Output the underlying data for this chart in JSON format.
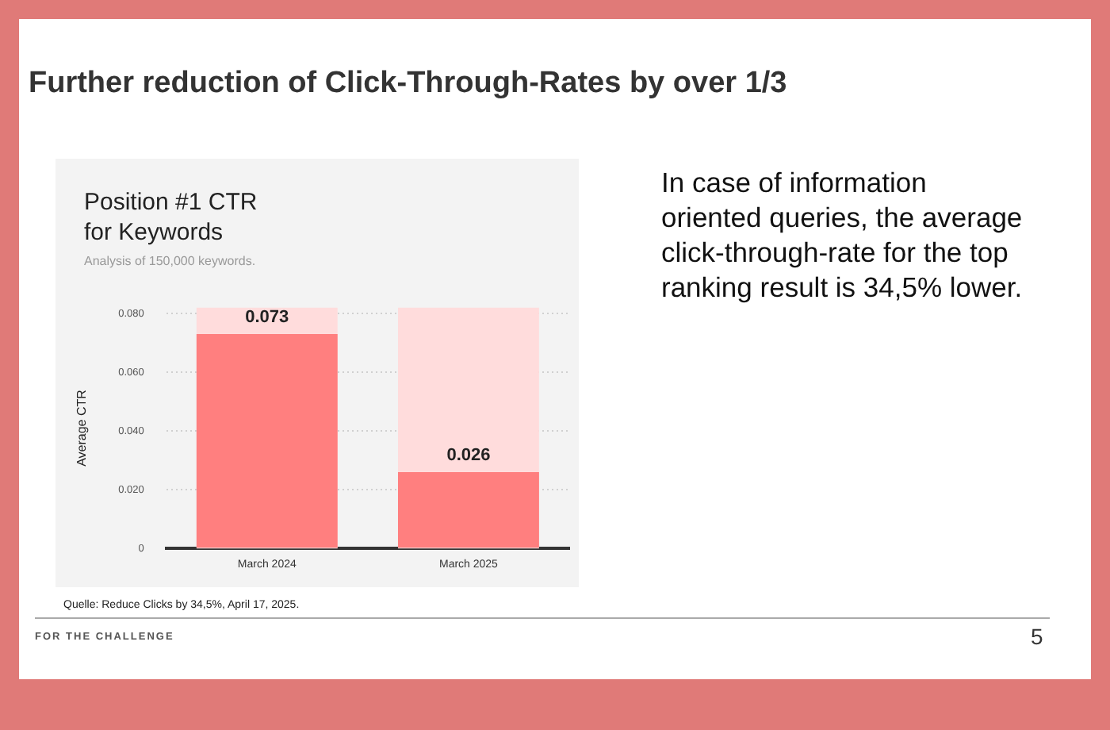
{
  "chart_data": {
    "type": "bar",
    "title": "Position #1 CTR\nfor Keywords",
    "subtitle": "Analysis of 150,000 keywords.",
    "ylabel": "Average CTR",
    "categories": [
      "March 2024",
      "March 2025"
    ],
    "series": [
      {
        "color": "#ff7f7f",
        "values": [
          0.073,
          0.026
        ]
      }
    ],
    "ylim": [
      0,
      0.082
    ],
    "yticks": [
      0,
      {
        "value": 0.02,
        "label": "0.020"
      },
      {
        "value": 0.04,
        "label": "0.040"
      },
      {
        "value": 0.06,
        "label": "0.060"
      },
      {
        "value": 0.08,
        "label": "0.080"
      }
    ],
    "grid": "y",
    "legend": false,
    "data_labels": true,
    "annotations": [
      "Further reduction of Click-Through-Rates by over 1/3",
      "In case of information oriented queries, the average click-through-rate for the top ranking result is 34,5% lower.",
      "Quelle: Reduce Clicks by 34,5%, April 17, 2025.",
      "FOR THE CHALLENGE",
      "5"
    ]
  }
}
